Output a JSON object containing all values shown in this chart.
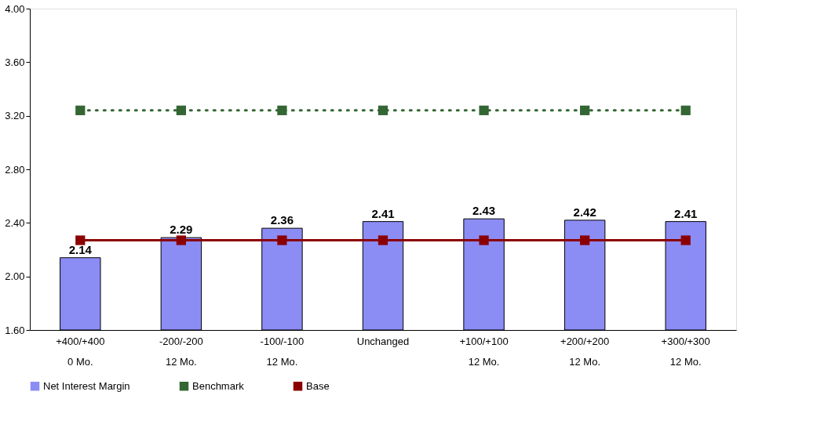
{
  "chart_data": {
    "type": "bar",
    "categories": [
      "+400/+400\n0 Mo.",
      "-200/-200\n12 Mo.",
      "-100/-100\n12 Mo.",
      "Unchanged",
      "+100/+100\n12 Mo.",
      "+200/+200\n12 Mo.",
      "+300/+300\n12 Mo."
    ],
    "series": [
      {
        "name": "Net Interest Margin",
        "color": "#8c8cf5",
        "values": [
          2.14,
          2.29,
          2.36,
          2.41,
          2.43,
          2.42,
          2.41
        ],
        "value_labels": [
          "2.14",
          "2.29",
          "2.36",
          "2.41",
          "2.43",
          "2.42",
          "2.41"
        ]
      },
      {
        "name": "Benchmark",
        "type": "line",
        "color": "#336633",
        "line_style": "dotted",
        "marker": "square",
        "values": [
          3.24,
          3.24,
          3.24,
          3.24,
          3.24,
          3.24,
          3.24
        ]
      },
      {
        "name": "Base",
        "type": "line",
        "color": "#8b0000",
        "line_style": "solid",
        "marker": "square",
        "values": [
          2.27,
          2.27,
          2.27,
          2.27,
          2.27,
          2.27,
          2.27
        ]
      }
    ],
    "ylim": [
      1.6,
      4.0
    ],
    "yticks": [
      {
        "value": 1.6,
        "label": "1.60"
      },
      {
        "value": 2.0,
        "label": "2.00"
      },
      {
        "value": 2.4,
        "label": "2.40"
      },
      {
        "value": 2.8,
        "label": "2.80"
      },
      {
        "value": 3.2,
        "label": "3.20"
      },
      {
        "value": 3.6,
        "label": "3.60"
      },
      {
        "value": 4.0,
        "label": "4.00"
      }
    ],
    "grid": false,
    "legend": "bottom"
  }
}
